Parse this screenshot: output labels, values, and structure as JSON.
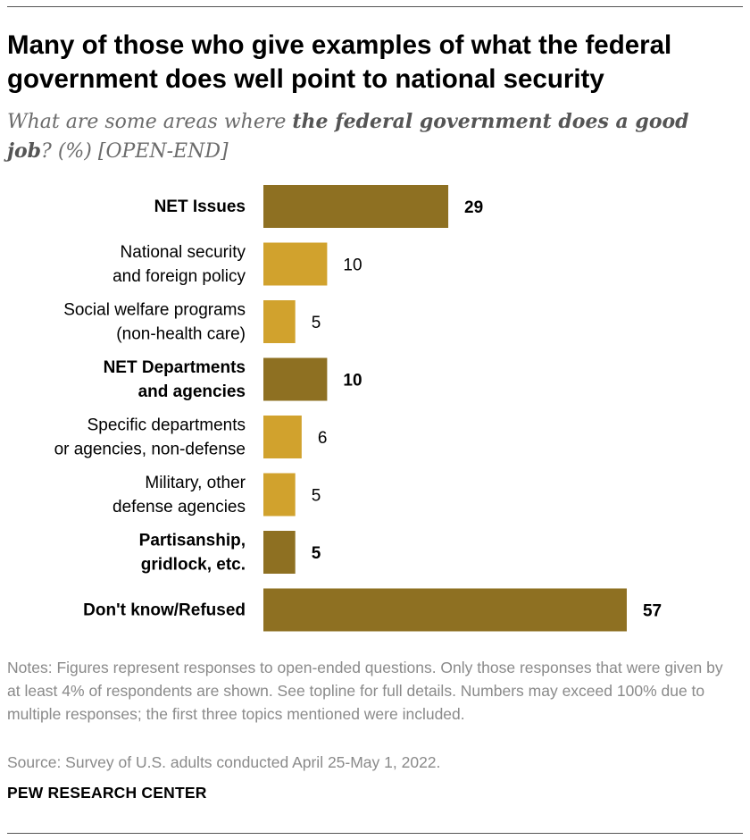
{
  "header": {
    "title": "Many of those who give examples of what the federal government does well point to national security",
    "subtitle_pre": "What are some areas where ",
    "subtitle_bold": "the federal government does a good job",
    "subtitle_post": "? (%) [OPEN-END]"
  },
  "chart_data": {
    "type": "bar",
    "orientation": "horizontal",
    "categories": [
      "NET Issues",
      "National security\nand foreign policy",
      "Social welfare programs\n(non-health care)",
      "NET Departments\nand agencies",
      "Specific departments\nor agencies, non-defense",
      "Military, other\ndefense agencies",
      "Partisanship,\ngridlock, etc.",
      "Don't know/Refused"
    ],
    "values": [
      29,
      10,
      5,
      10,
      6,
      5,
      5,
      57
    ],
    "value_labels": [
      "29",
      "10",
      "5",
      "10",
      "6",
      "5",
      "5",
      "57"
    ],
    "is_net": [
      true,
      false,
      false,
      true,
      false,
      false,
      true,
      true
    ],
    "colors": {
      "net": "#8e7022",
      "sub": "#d1a22d"
    },
    "xlim": [
      0,
      57
    ],
    "grid": false,
    "legend": "none"
  },
  "footer": {
    "notes": "Notes: Figures represent responses to open-ended questions. Only those responses that were given by at least 4% of respondents are shown. See topline for full details. Numbers may exceed 100% due to multiple responses; the first three topics mentioned were included.",
    "source": "Source: Survey of U.S. adults conducted April 25-May 1, 2022.",
    "brand": "PEW RESEARCH CENTER"
  }
}
